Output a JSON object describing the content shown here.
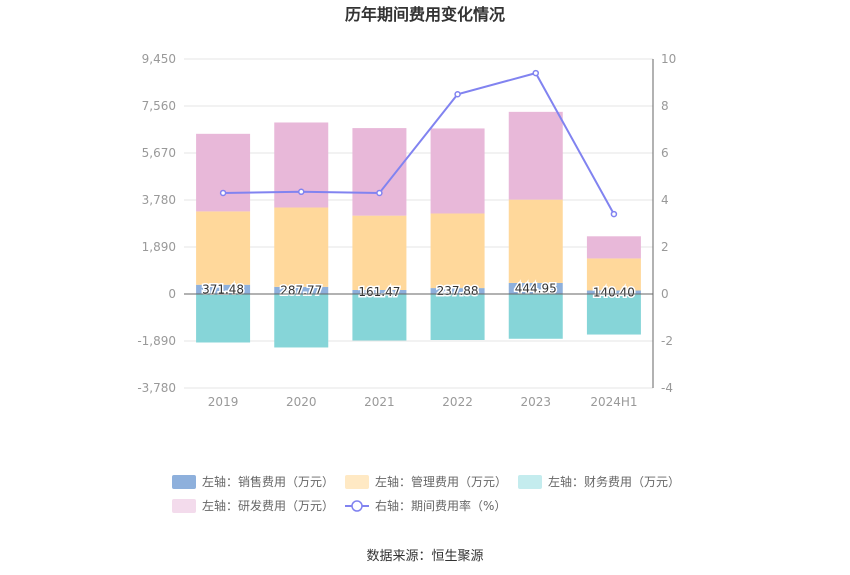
{
  "chart_data": {
    "type": "bar",
    "title": "历年期间费用变化情况",
    "categories": [
      "2019",
      "2020",
      "2021",
      "2022",
      "2023",
      "2024H1"
    ],
    "left_axis": {
      "ticks": [
        "9,450",
        "7,560",
        "5,670",
        "3,780",
        "1,890",
        "0",
        "-1,890",
        "-3,780"
      ],
      "ylim": [
        -3780,
        9450
      ]
    },
    "right_axis": {
      "ticks": [
        "10",
        "8",
        "6",
        "4",
        "2",
        "0",
        "-2",
        "-4"
      ],
      "ylim": [
        -4,
        10
      ]
    },
    "series": [
      {
        "name": "左轴：销售费用（万元）",
        "axis": "left",
        "kind": "bar",
        "color": "#8eb0dc",
        "values": [
          371.48,
          287.77,
          161.47,
          237.88,
          444.95,
          140.4
        ],
        "labels": [
          "371.48",
          "287.77",
          "161.47",
          "237.88",
          "444.95",
          "140.40"
        ]
      },
      {
        "name": "左轴：管理费用（万元）",
        "axis": "left",
        "kind": "bar",
        "color": "#ffd89b",
        "values": [
          2950,
          3190,
          2990,
          3000,
          3350,
          1290
        ]
      },
      {
        "name": "左轴：财务费用（万元）",
        "axis": "left",
        "kind": "bar",
        "color": "#86d5d8",
        "values": [
          -1950,
          -2150,
          -1870,
          -1850,
          -1800,
          -1630
        ]
      },
      {
        "name": "左轴：研发费用（万元）",
        "axis": "left",
        "kind": "bar",
        "color": "#e8b8d9",
        "values": [
          3120,
          3420,
          3520,
          3420,
          3530,
          890
        ]
      },
      {
        "name": "右轴：期间费用率（%）",
        "axis": "right",
        "kind": "line",
        "color": "#8183f0",
        "values": [
          4.3,
          4.35,
          4.3,
          8.5,
          9.4,
          3.4
        ]
      }
    ],
    "legend_position": "bottom"
  },
  "source_text": "数据来源：恒生聚源"
}
